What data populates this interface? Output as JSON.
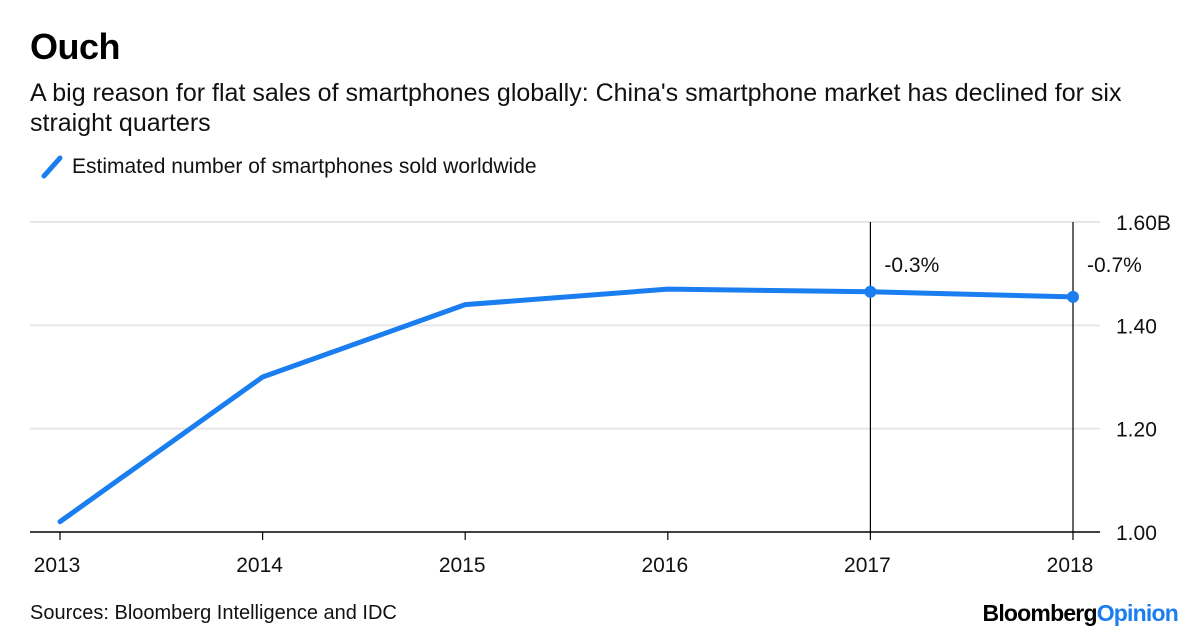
{
  "title": "Ouch",
  "subtitle": "A big reason for flat sales of smartphones globally: China's smartphone market has declined for six straight quarters",
  "source": "Sources: Bloomberg Intelligence and IDC",
  "brand": {
    "part1": "Bloomberg",
    "part2": "Opinion"
  },
  "colors": {
    "line": "#1a7df0",
    "grid": "#e6e6e6",
    "axis": "#000000"
  },
  "chart_data": {
    "type": "line",
    "x": [
      "2013",
      "2014",
      "2015",
      "2016",
      "2017",
      "2018"
    ],
    "series": [
      {
        "name": "Estimated number of smartphones sold worldwide",
        "values": [
          1.02,
          1.3,
          1.44,
          1.47,
          1.465,
          1.455
        ]
      }
    ],
    "ylim": [
      1.0,
      1.6
    ],
    "yticks": [
      1.0,
      1.2,
      1.4,
      1.6
    ],
    "ytick_labels": [
      "1.00",
      "1.20",
      "1.40",
      "1.60B"
    ],
    "y_axis_side": "right",
    "grid": true,
    "annotations": [
      {
        "x": "2017",
        "label": "-0.3%"
      },
      {
        "x": "2018",
        "label": "-0.7%"
      }
    ]
  }
}
